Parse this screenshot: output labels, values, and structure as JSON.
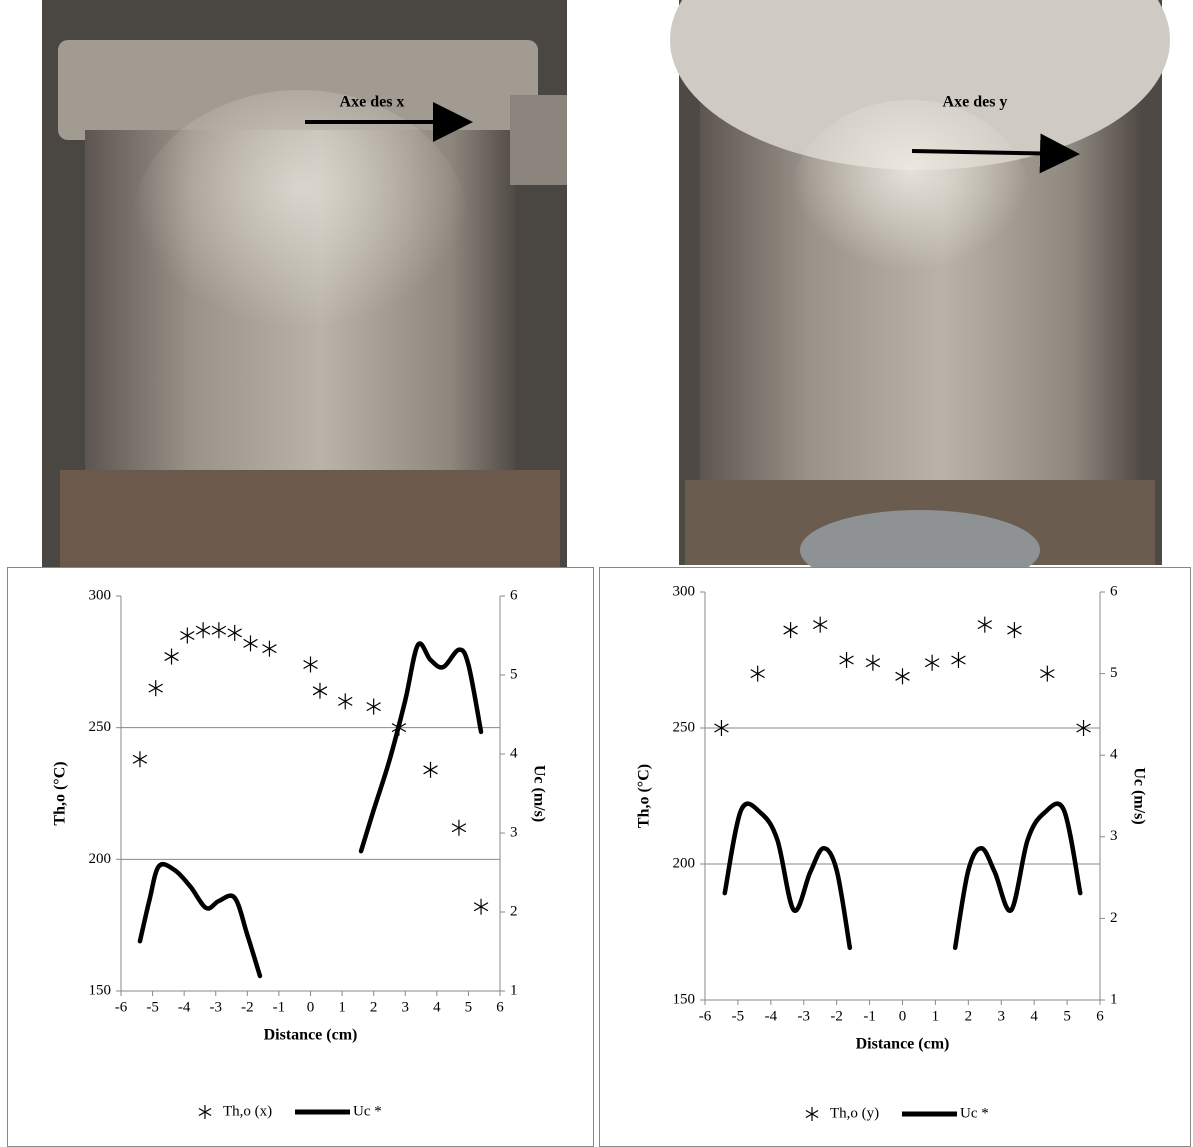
{
  "photo_labels": [
    "Axe des x",
    "Axe des y"
  ],
  "chart_data": [
    {
      "type": "scatter",
      "x_label": "Distance (cm)",
      "y_label": "Th,o (°C)",
      "y2_label": "Uc (m/s)",
      "xlim": [
        -6,
        6
      ],
      "xticks": [
        -6,
        -5,
        -4,
        -3,
        -2,
        -1,
        0,
        1,
        2,
        3,
        4,
        5,
        6
      ],
      "ylim": [
        150,
        300
      ],
      "yticks": [
        150,
        200,
        250,
        300
      ],
      "y2lim": [
        1,
        6
      ],
      "y2ticks": [
        1,
        2,
        3,
        4,
        5,
        6
      ],
      "grid": true,
      "legend": "bottom",
      "series": [
        {
          "name": "Th,o (x)",
          "color": "#000000",
          "marker": "asterisk",
          "x": [
            -5.4,
            -4.9,
            -4.4,
            -3.9,
            -3.4,
            -2.9,
            -2.4,
            -1.9,
            -1.3,
            0,
            0.3,
            1.1,
            2,
            2.8,
            3.8,
            4.7,
            5.4
          ],
          "values": [
            238,
            265,
            277,
            285,
            287,
            287,
            286,
            282,
            280,
            274,
            264,
            260,
            258,
            250,
            234,
            212,
            182
          ]
        },
        {
          "name": "Uc *",
          "color": "#000000",
          "axis": "y2",
          "x": [
            -5.4,
            -5.1,
            -4.8,
            -4.3,
            -3.8,
            -3.3,
            -2.9,
            -2.4,
            -2,
            -1.6,
            null,
            1.6,
            2,
            2.5,
            3,
            3.4,
            3.8,
            4.2,
            4.7,
            5,
            5.4
          ],
          "values": [
            1.63,
            2.15,
            2.58,
            2.53,
            2.32,
            2.05,
            2.14,
            2.18,
            1.71,
            1.19,
            null,
            2.77,
            3.29,
            3.92,
            4.68,
            5.38,
            5.19,
            5.1,
            5.32,
            5.13,
            4.28
          ]
        }
      ]
    },
    {
      "type": "scatter",
      "x_label": "Distance (cm)",
      "y_label": "Th,o (°C)",
      "y2_label": "Uc (m/s)",
      "xlim": [
        -6,
        6
      ],
      "xticks": [
        -6,
        -5,
        -4,
        -3,
        -2,
        -1,
        0,
        1,
        2,
        3,
        4,
        5,
        6
      ],
      "ylim": [
        150,
        300
      ],
      "yticks": [
        150,
        200,
        250,
        300
      ],
      "y2lim": [
        1,
        6
      ],
      "y2ticks": [
        1,
        2,
        3,
        4,
        5,
        6
      ],
      "grid": true,
      "legend": "bottom",
      "series": [
        {
          "name": "Th,o (y)",
          "color": "#000000",
          "marker": "asterisk",
          "x": [
            -5.5,
            -4.4,
            -3.4,
            -2.5,
            -1.7,
            -0.9,
            0,
            0.9,
            1.7,
            2.5,
            3.4,
            4.4,
            5.5
          ],
          "values": [
            250,
            270,
            286,
            288,
            275,
            274,
            269,
            274,
            275,
            288,
            286,
            270,
            250
          ]
        },
        {
          "name": "Uc *",
          "color": "#000000",
          "axis": "y2",
          "x": [
            -5.4,
            -4.9,
            -4.3,
            -3.8,
            -3.3,
            -2.8,
            -2.4,
            -2,
            -1.6,
            null,
            1.6,
            2,
            2.4,
            2.8,
            3.3,
            3.8,
            4.3,
            4.9,
            5.4
          ],
          "values": [
            2.31,
            3.33,
            3.29,
            2.96,
            2.1,
            2.57,
            2.86,
            2.59,
            1.64,
            null,
            1.64,
            2.59,
            2.86,
            2.57,
            2.1,
            2.96,
            3.29,
            3.33,
            2.31
          ]
        }
      ]
    }
  ]
}
